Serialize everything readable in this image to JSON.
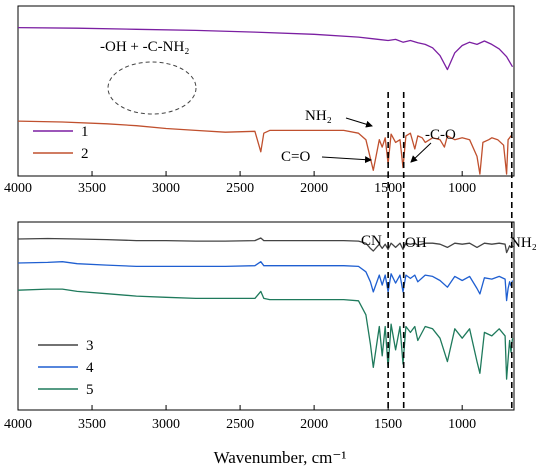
{
  "chart_data": [
    {
      "type": "line",
      "panel": "top",
      "xlim": [
        4000,
        650
      ],
      "x_reversed": true,
      "ticks": [
        4000,
        3500,
        3000,
        2500,
        2000,
        1500,
        1000
      ],
      "series": [
        {
          "name": "1",
          "color": "#7b1fa2",
          "x": [
            4000,
            3600,
            3200,
            2800,
            2400,
            2000,
            1700,
            1600,
            1500,
            1450,
            1400,
            1350,
            1300,
            1250,
            1200,
            1150,
            1100,
            1050,
            1000,
            950,
            900,
            850,
            800,
            750,
            700,
            660
          ],
          "y": [
            0.1,
            0.11,
            0.13,
            0.15,
            0.18,
            0.22,
            0.27,
            0.3,
            0.33,
            0.31,
            0.36,
            0.33,
            0.37,
            0.4,
            0.46,
            0.6,
            0.85,
            0.55,
            0.42,
            0.36,
            0.4,
            0.34,
            0.4,
            0.48,
            0.62,
            0.8
          ]
        },
        {
          "name": "2",
          "color": "#c0502e",
          "x": [
            4000,
            3700,
            3400,
            3200,
            3000,
            2800,
            2600,
            2400,
            2360,
            2340,
            2300,
            2000,
            1800,
            1700,
            1650,
            1600,
            1560,
            1540,
            1520,
            1500,
            1480,
            1450,
            1420,
            1400,
            1380,
            1350,
            1320,
            1300,
            1270,
            1250,
            1200,
            1150,
            1120,
            1100,
            1050,
            1000,
            950,
            900,
            880,
            860,
            820,
            800,
            760,
            720,
            700,
            690,
            680,
            670,
            660
          ],
          "y": [
            0.42,
            0.43,
            0.45,
            0.47,
            0.5,
            0.52,
            0.54,
            0.53,
            0.75,
            0.55,
            0.52,
            0.52,
            0.52,
            0.55,
            0.62,
            0.95,
            0.62,
            0.7,
            0.6,
            0.88,
            0.56,
            0.65,
            0.62,
            0.92,
            0.58,
            0.55,
            0.72,
            0.58,
            0.6,
            0.65,
            0.6,
            0.62,
            0.7,
            0.58,
            0.62,
            0.6,
            0.62,
            0.8,
            0.99,
            0.65,
            0.62,
            0.6,
            0.62,
            0.68,
            0.99,
            0.62,
            0.6,
            0.58,
            0.6
          ]
        }
      ],
      "legend": [
        "1",
        "2"
      ]
    },
    {
      "type": "line",
      "panel": "bottom",
      "xlim": [
        4000,
        650
      ],
      "x_reversed": true,
      "ticks": [
        4000,
        3500,
        3000,
        2500,
        2000,
        1500,
        1000
      ],
      "xlabel": "Wavenumber, cm⁻¹",
      "series": [
        {
          "name": "3",
          "color": "#444444",
          "x": [
            4000,
            3800,
            3600,
            3400,
            3200,
            3000,
            2800,
            2600,
            2400,
            2360,
            2340,
            2300,
            2000,
            1800,
            1700,
            1650,
            1620,
            1600,
            1560,
            1540,
            1520,
            1500,
            1480,
            1450,
            1420,
            1400,
            1380,
            1350,
            1320,
            1300,
            1250,
            1200,
            1150,
            1100,
            1050,
            1000,
            950,
            900,
            850,
            800,
            750,
            710,
            700,
            690,
            680,
            670,
            660
          ],
          "y": [
            0.02,
            0.01,
            0.02,
            0.03,
            0.05,
            0.05,
            0.06,
            0.06,
            0.05,
            0.0,
            0.05,
            0.05,
            0.05,
            0.05,
            0.06,
            0.1,
            0.2,
            0.25,
            0.12,
            0.2,
            0.12,
            0.22,
            0.1,
            0.18,
            0.1,
            0.22,
            0.1,
            0.12,
            0.1,
            0.14,
            0.1,
            0.1,
            0.12,
            0.18,
            0.1,
            0.12,
            0.1,
            0.18,
            0.1,
            0.12,
            0.1,
            0.12,
            0.28,
            0.22,
            0.15,
            0.18,
            0.14
          ]
        },
        {
          "name": "4",
          "color": "#1f5fd1",
          "x": [
            4000,
            3800,
            3700,
            3600,
            3400,
            3200,
            3000,
            2800,
            2600,
            2400,
            2360,
            2340,
            2300,
            2000,
            1800,
            1700,
            1650,
            1620,
            1600,
            1560,
            1540,
            1520,
            1500,
            1480,
            1450,
            1420,
            1400,
            1380,
            1350,
            1320,
            1300,
            1250,
            1200,
            1150,
            1100,
            1050,
            1000,
            950,
            900,
            880,
            850,
            800,
            750,
            710,
            700,
            690,
            680,
            670,
            660
          ],
          "y": [
            0.12,
            0.11,
            0.1,
            0.13,
            0.15,
            0.17,
            0.17,
            0.17,
            0.17,
            0.16,
            0.1,
            0.16,
            0.16,
            0.16,
            0.16,
            0.17,
            0.25,
            0.4,
            0.55,
            0.3,
            0.45,
            0.3,
            0.55,
            0.28,
            0.42,
            0.3,
            0.55,
            0.3,
            0.35,
            0.3,
            0.4,
            0.3,
            0.32,
            0.38,
            0.48,
            0.32,
            0.38,
            0.32,
            0.5,
            0.58,
            0.34,
            0.36,
            0.32,
            0.36,
            0.68,
            0.5,
            0.4,
            0.46,
            0.38
          ]
        },
        {
          "name": "5",
          "color": "#1f7a5c",
          "x": [
            4000,
            3800,
            3700,
            3600,
            3400,
            3200,
            3000,
            2800,
            2600,
            2400,
            2360,
            2340,
            2300,
            2000,
            1800,
            1700,
            1650,
            1620,
            1600,
            1560,
            1540,
            1520,
            1500,
            1480,
            1450,
            1420,
            1400,
            1380,
            1350,
            1320,
            1300,
            1250,
            1200,
            1150,
            1100,
            1050,
            1000,
            950,
            900,
            880,
            850,
            800,
            750,
            710,
            700,
            690,
            680,
            670,
            660
          ],
          "y": [
            0.19,
            0.18,
            0.18,
            0.2,
            0.22,
            0.24,
            0.25,
            0.26,
            0.26,
            0.26,
            0.2,
            0.26,
            0.27,
            0.27,
            0.27,
            0.28,
            0.4,
            0.65,
            0.85,
            0.5,
            0.75,
            0.5,
            0.85,
            0.48,
            0.7,
            0.5,
            0.82,
            0.5,
            0.55,
            0.5,
            0.62,
            0.5,
            0.52,
            0.6,
            0.8,
            0.52,
            0.6,
            0.52,
            0.8,
            0.9,
            0.55,
            0.58,
            0.52,
            0.58,
            0.95,
            0.78,
            0.62,
            0.72,
            0.6
          ]
        }
      ],
      "legend": [
        "3",
        "4",
        "5"
      ]
    }
  ],
  "annotations": {
    "oh_nh2_region": "-OH + -C-NH₂",
    "nh2_arrow": "NH₂",
    "co_arrow": "C=O",
    "c_o_arrow": "-C-O",
    "cn_label": "CN",
    "oh_label": "OH",
    "nh2_label": "NH₂"
  },
  "dashed_line_positions_cm": [
    1500,
    1395,
    665
  ]
}
